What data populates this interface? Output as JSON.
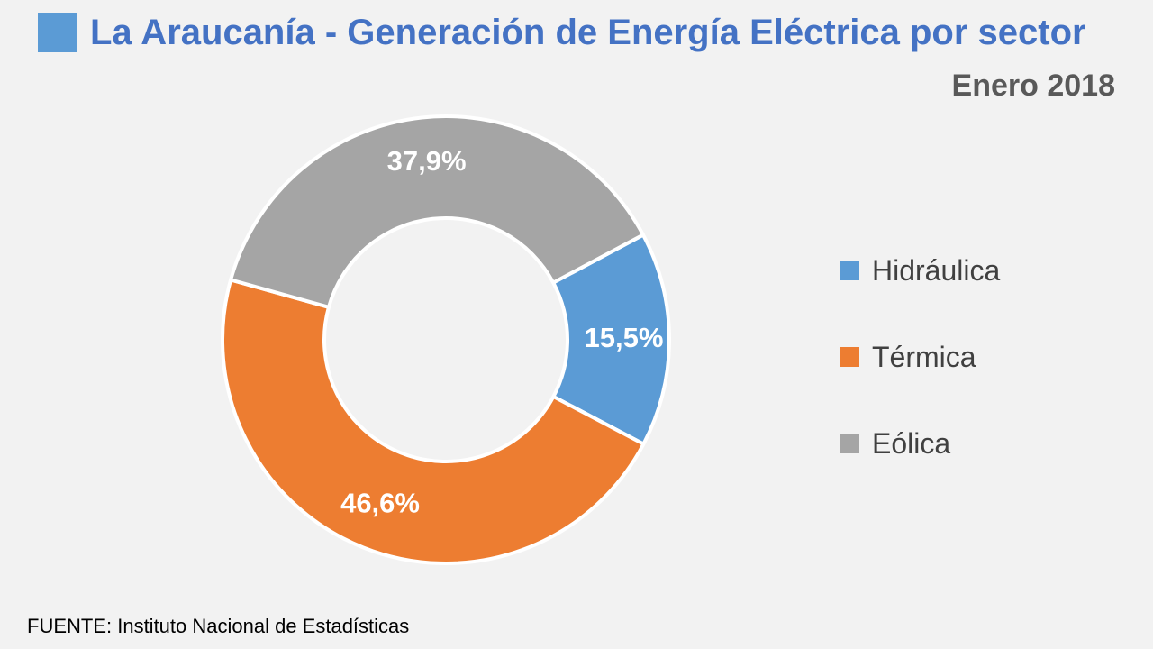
{
  "colors": {
    "accent": "#5b9bd5",
    "title_text": "#4472c4",
    "hidraulica": "#5b9bd5",
    "termica": "#ed7d31",
    "eolica": "#a5a5a5",
    "background": "#f2f2f2"
  },
  "source": "FUENTE: Instituto Nacional de Estadísticas",
  "chart_data": {
    "type": "pie",
    "variant": "donut",
    "title": "La Araucanía - Generación de Energía Eléctrica por sector",
    "subtitle": "Enero 2018",
    "legend_position": "right",
    "series": [
      {
        "name": "Hidráulica",
        "value": 15.5,
        "label": "15,5%",
        "color": "#5b9bd5"
      },
      {
        "name": "Térmica",
        "value": 46.6,
        "label": "46,6%",
        "color": "#ed7d31"
      },
      {
        "name": "Eólica",
        "value": 37.9,
        "label": "37,9%",
        "color": "#a5a5a5"
      }
    ]
  }
}
